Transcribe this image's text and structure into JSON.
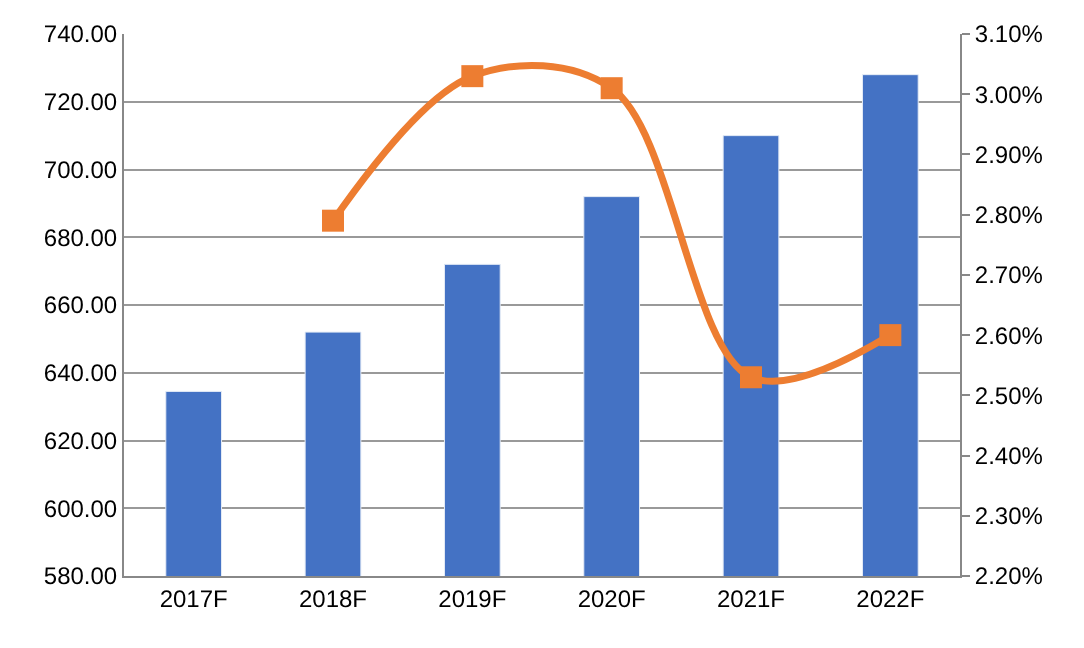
{
  "chart_data": {
    "type": "bar",
    "categories": [
      "2017F",
      "2018F",
      "2019F",
      "2020F",
      "2021F",
      "2022F"
    ],
    "series": [
      {
        "color": "#4472c4",
        "values": [
          634.5,
          652,
          672,
          692,
          710,
          728
        ]
      },
      {
        "type": "line",
        "axis": "y2",
        "color": "#ed7d31",
        "marker": "square",
        "values": [
          null,
          2.79,
          3.03,
          3.01,
          2.53,
          2.6
        ]
      }
    ],
    "ylim": [
      580,
      740
    ],
    "yticks": [
      {
        "value": 580,
        "label": "580.00"
      },
      {
        "value": 600,
        "label": "600.00"
      },
      {
        "value": 620,
        "label": "620.00"
      },
      {
        "value": 640,
        "label": "640.00"
      },
      {
        "value": 660,
        "label": "660.00"
      },
      {
        "value": 680,
        "label": "680.00"
      },
      {
        "value": 700,
        "label": "700.00"
      },
      {
        "value": 720,
        "label": "720.00"
      },
      {
        "value": 740,
        "label": "740.00"
      }
    ],
    "y2lim": [
      2.2,
      3.1
    ],
    "y2ticks": [
      {
        "value": 2.2,
        "label": "2.20%"
      },
      {
        "value": 2.3,
        "label": "2.30%"
      },
      {
        "value": 2.4,
        "label": "2.40%"
      },
      {
        "value": 2.5,
        "label": "2.50%"
      },
      {
        "value": 2.6,
        "label": "2.60%"
      },
      {
        "value": 2.7,
        "label": "2.70%"
      },
      {
        "value": 2.8,
        "label": "2.80%"
      },
      {
        "value": 2.9,
        "label": "2.90%"
      },
      {
        "value": 3.0,
        "label": "3.00%"
      },
      {
        "value": 3.1,
        "label": "3.10%"
      }
    ],
    "grid": "y"
  }
}
